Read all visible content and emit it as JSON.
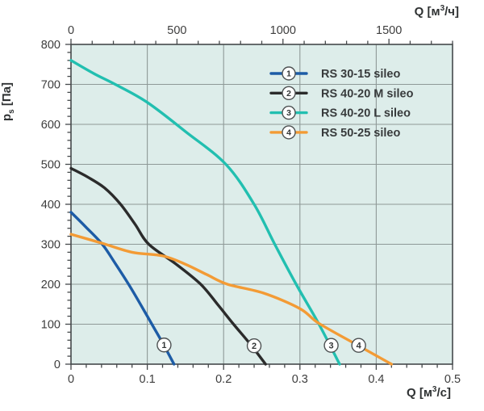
{
  "chart_data": {
    "type": "line",
    "title": "",
    "axes": {
      "top": {
        "title_prefix": "Q [м",
        "title_sup": "3",
        "title_suffix": "/ч]",
        "range_in_bottom_units": [
          0,
          0.5
        ],
        "units_per_bottom_unit": 3600,
        "major_ticks": [
          0,
          500,
          1000,
          1500
        ],
        "tick_labels": [
          "0",
          "500",
          "1000",
          "1500"
        ],
        "minor_step": 100
      },
      "bottom": {
        "title_prefix": "Q [м",
        "title_sup": "3",
        "title_suffix": "/с]",
        "range": [
          0,
          0.5
        ],
        "major_ticks": [
          0,
          0.1,
          0.2,
          0.3,
          0.4,
          0.5
        ],
        "tick_labels": [
          "0",
          "0.1",
          "0.2",
          "0.3",
          "0.4",
          "0.5"
        ],
        "minor_step": 0.02
      },
      "left": {
        "title_prefix": "p",
        "title_sub": "s",
        "title_suffix": " [Па]",
        "range": [
          0,
          800
        ],
        "major_ticks": [
          0,
          100,
          200,
          300,
          400,
          500,
          600,
          700,
          800
        ],
        "tick_labels": [
          "0",
          "100",
          "200",
          "300",
          "400",
          "500",
          "600",
          "700",
          "800"
        ],
        "minor_step": 20
      }
    },
    "series": [
      {
        "id": "1",
        "name": "RS 30-15 sileo",
        "color": "#1d5ca6",
        "points": [
          [
            0,
            380
          ],
          [
            0.02,
            342
          ],
          [
            0.041,
            300
          ],
          [
            0.058,
            252
          ],
          [
            0.0755,
            200
          ],
          [
            0.091,
            150
          ],
          [
            0.106,
            100
          ],
          [
            0.121,
            50
          ],
          [
            0.135,
            0
          ]
        ],
        "badge": {
          "q": 0.122,
          "p": 48
        }
      },
      {
        "id": "2",
        "name": "RS 40-20 M sileo",
        "color": "#2b2b2b",
        "points": [
          [
            0,
            490
          ],
          [
            0.022,
            468
          ],
          [
            0.044,
            441
          ],
          [
            0.065,
            400
          ],
          [
            0.084,
            350
          ],
          [
            0.102,
            300
          ],
          [
            0.138,
            250
          ],
          [
            0.17,
            200
          ],
          [
            0.192,
            150
          ],
          [
            0.213,
            100
          ],
          [
            0.235,
            50
          ],
          [
            0.255,
            0
          ]
        ],
        "badge": {
          "q": 0.24,
          "p": 46
        }
      },
      {
        "id": "3",
        "name": "RS 40-20 L sileo",
        "color": "#22bfb0",
        "points": [
          [
            0,
            760
          ],
          [
            0.03,
            727
          ],
          [
            0.058,
            700
          ],
          [
            0.1,
            655
          ],
          [
            0.15,
            582
          ],
          [
            0.203,
            500
          ],
          [
            0.24,
            400
          ],
          [
            0.267,
            300
          ],
          [
            0.295,
            200
          ],
          [
            0.325,
            100
          ],
          [
            0.352,
            0
          ]
        ],
        "badge": {
          "q": 0.341,
          "p": 47
        }
      },
      {
        "id": "4",
        "name": "RS 50-25 sileo",
        "color": "#f39b35",
        "points": [
          [
            0,
            325
          ],
          [
            0.04,
            303
          ],
          [
            0.08,
            280
          ],
          [
            0.12,
            271
          ],
          [
            0.15,
            250
          ],
          [
            0.178,
            224
          ],
          [
            0.205,
            200
          ],
          [
            0.252,
            178
          ],
          [
            0.3,
            139
          ],
          [
            0.325,
            102
          ],
          [
            0.375,
            48
          ],
          [
            0.42,
            0
          ]
        ],
        "badge": {
          "q": 0.377,
          "p": 47
        }
      }
    ],
    "legend": {
      "position": "top-right-inside"
    },
    "grid": true,
    "style": {
      "plot_bg": "#ddedea",
      "grid_color": "#8e9997",
      "frame_color": "#45494b",
      "tick_color": "#45494b",
      "text_color": "#3d3d3d",
      "badge_bg": "#ffffff",
      "badge_border": "#4d5152"
    }
  }
}
